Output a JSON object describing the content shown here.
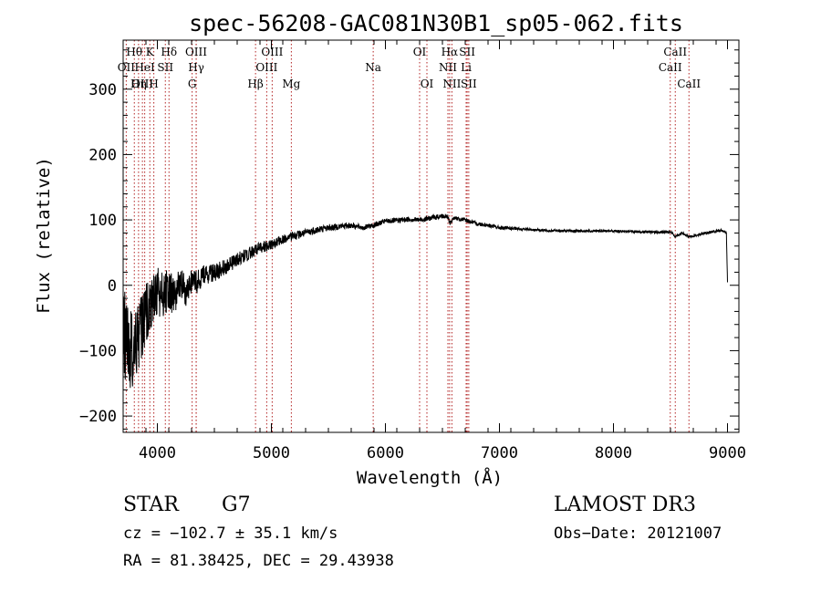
{
  "chart_data": {
    "type": "line",
    "title": "spec-56208-GAC081N30B1_sp05-062.fits",
    "xlabel": "Wavelength (Å)",
    "ylabel": "Flux (relative)",
    "xlim": [
      3700,
      9100
    ],
    "ylim": [
      -225,
      375
    ],
    "xticks": [
      4000,
      5000,
      6000,
      7000,
      8000,
      9000
    ],
    "yticks": [
      -200,
      -100,
      0,
      100,
      200,
      300
    ],
    "grid": false,
    "series": [
      {
        "name": "spectrum",
        "x": [
          3700,
          3750,
          3800,
          3850,
          3900,
          3950,
          4000,
          4050,
          4100,
          4150,
          4200,
          4250,
          4300,
          4350,
          4400,
          4500,
          4600,
          4700,
          4800,
          4900,
          5000,
          5100,
          5200,
          5300,
          5400,
          5500,
          5600,
          5700,
          5800,
          5900,
          6000,
          6100,
          6200,
          6300,
          6400,
          6500,
          6550,
          6563,
          6600,
          6700,
          6800,
          6900,
          7000,
          7200,
          7400,
          7600,
          7800,
          8000,
          8200,
          8400,
          8500,
          8542,
          8600,
          8662,
          8800,
          8950,
          8990,
          9000
        ],
        "y": [
          -60,
          -110,
          -90,
          -70,
          -40,
          -30,
          -10,
          -15,
          -5,
          -20,
          5,
          -10,
          10,
          5,
          15,
          20,
          28,
          40,
          48,
          58,
          62,
          70,
          76,
          80,
          85,
          88,
          90,
          92,
          88,
          92,
          98,
          99,
          101,
          100,
          103,
          106,
          104,
          95,
          103,
          100,
          94,
          92,
          88,
          86,
          84,
          83,
          83,
          83,
          82,
          81,
          82,
          75,
          80,
          74,
          80,
          84,
          80,
          5
        ],
        "noise_scale": [
          70,
          65,
          60,
          52,
          45,
          40,
          38,
          35,
          32,
          28,
          25,
          22,
          20,
          18,
          16,
          14,
          12,
          11,
          10,
          9,
          8,
          7,
          7,
          6,
          6,
          5,
          5,
          5,
          4,
          4,
          4,
          4,
          4,
          4,
          4,
          4,
          4,
          4,
          3,
          3,
          3,
          3,
          3,
          2,
          2,
          2,
          2,
          2,
          2,
          2,
          2,
          2,
          2,
          2,
          2,
          2,
          2,
          2
        ]
      }
    ],
    "spectral_lines": [
      {
        "label": "OII",
        "x": 3727,
        "row": 1
      },
      {
        "label": "Hθ",
        "x": 3798,
        "row": 0
      },
      {
        "label": "OIII",
        "x": 3869,
        "row": 2
      },
      {
        "label": "Hη",
        "x": 3835,
        "row": 2
      },
      {
        "label": "K",
        "x": 3934,
        "row": 0
      },
      {
        "label": "HeI",
        "x": 3889,
        "row": 1
      },
      {
        "label": "H",
        "x": 3969,
        "row": 2
      },
      {
        "label": "SII",
        "x": 4070,
        "row": 1
      },
      {
        "label": "Hδ",
        "x": 4102,
        "row": 0
      },
      {
        "label": "OIII",
        "x": 4340,
        "row": 0
      },
      {
        "label": "Hγ",
        "x": 4341,
        "row": 1
      },
      {
        "label": "G",
        "x": 4305,
        "row": 2
      },
      {
        "label": "Hβ",
        "x": 4861,
        "row": 2
      },
      {
        "label": "OIII",
        "x": 5007,
        "row": 0
      },
      {
        "label": "OIII",
        "x": 4959,
        "row": 1
      },
      {
        "label": "Mg",
        "x": 5175,
        "row": 2
      },
      {
        "label": "Na",
        "x": 5893,
        "row": 1
      },
      {
        "label": "OI",
        "x": 6300,
        "row": 0
      },
      {
        "label": "OI",
        "x": 6364,
        "row": 2
      },
      {
        "label": "Hα",
        "x": 6563,
        "row": 0
      },
      {
        "label": "NII",
        "x": 6548,
        "row": 1
      },
      {
        "label": "NII",
        "x": 6583,
        "row": 2
      },
      {
        "label": "SII",
        "x": 6717,
        "row": 0
      },
      {
        "label": "Li",
        "x": 6708,
        "row": 1
      },
      {
        "label": "SII",
        "x": 6731,
        "row": 2
      },
      {
        "label": "CaII",
        "x": 8542,
        "row": 0
      },
      {
        "label": "CaII",
        "x": 8498,
        "row": 1
      },
      {
        "label": "CaII",
        "x": 8662,
        "row": 2
      }
    ]
  },
  "info": {
    "class_label": "STAR",
    "subclass": "G7",
    "survey": "LAMOST DR3",
    "cz": "cz = −102.7 ± 35.1 km/s",
    "obs_date": "Obs−Date: 20121007",
    "radec": "RA =  81.38425, DEC =  29.43938"
  }
}
